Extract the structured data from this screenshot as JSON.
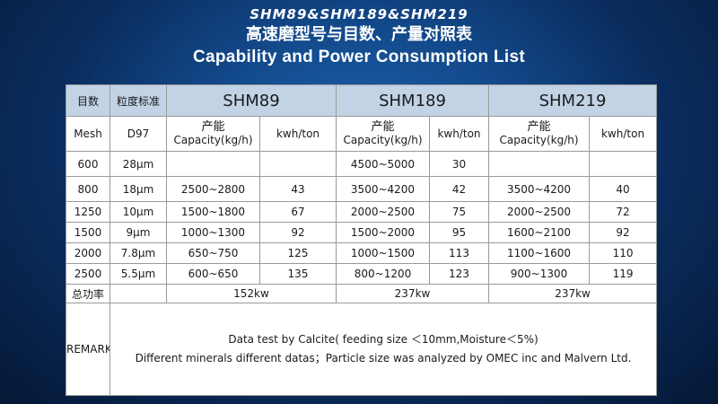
{
  "title": {
    "models": "SHM89&SHM189&SHM219",
    "chinese": "高速磨型号与目数、产量对照表",
    "english": "Capability and Power Consumption List"
  },
  "table": {
    "header": {
      "mesh_cn": "目数",
      "granularity_cn": "粒度标准",
      "models": [
        "SHM89",
        "SHM189",
        "SHM219"
      ]
    },
    "subheader": {
      "mesh": "Mesh",
      "d97": "D97",
      "capacity_cn": "产能",
      "capacity_en": "Capacity(kg/h)",
      "kwh": "kwh/ton"
    },
    "rows": [
      {
        "mesh": "600",
        "d97": "28μm",
        "c1": "",
        "k1": "",
        "c2": "4500~5000",
        "k2": "30",
        "c3": "",
        "k3": ""
      },
      {
        "mesh": "800",
        "d97": "18μm",
        "c1": "2500~2800",
        "k1": "43",
        "c2": "3500~4200",
        "k2": "42",
        "c3": "3500~4200",
        "k3": "40"
      },
      {
        "mesh": "1250",
        "d97": "10μm",
        "c1": "1500~1800",
        "k1": "67",
        "c2": "2000~2500",
        "k2": "75",
        "c3": "2000~2500",
        "k3": "72"
      },
      {
        "mesh": "1500",
        "d97": "9μm",
        "c1": "1000~1300",
        "k1": "92",
        "c2": "1500~2000",
        "k2": "95",
        "c3": "1600~2100",
        "k3": "92"
      },
      {
        "mesh": "2000",
        "d97": "7.8μm",
        "c1": "650~750",
        "k1": "125",
        "c2": "1000~1500",
        "k2": "113",
        "c3": "1100~1600",
        "k3": "110"
      },
      {
        "mesh": "2500",
        "d97": "5.5μm",
        "c1": "600~650",
        "k1": "135",
        "c2": "800~1200",
        "k2": "123",
        "c3": "900~1300",
        "k3": "119"
      }
    ],
    "power": {
      "label": "总功率",
      "values": [
        "152kw",
        "237kw",
        "237kw"
      ]
    },
    "remark": {
      "label": "REMARK",
      "line1": "Data test by Calcite( feeding size ＜10mm,Moisture＜5%)",
      "line2": "Different minerals different datas；Particle size was analyzed by OMEC inc and Malvern Ltd."
    }
  }
}
